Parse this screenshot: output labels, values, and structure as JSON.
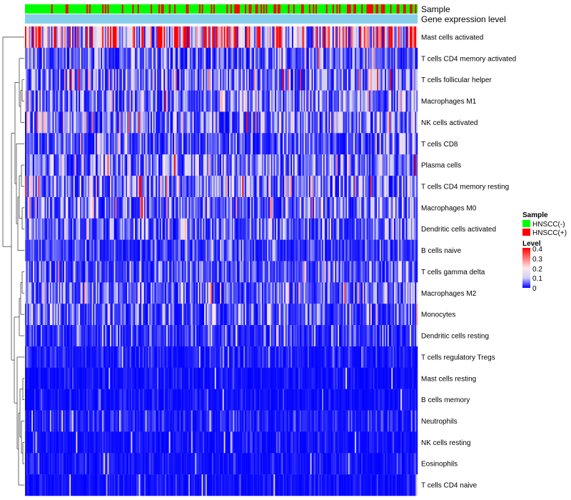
{
  "chart_data": {
    "type": "heatmap",
    "annotation_labels": [
      "Sample",
      "Gene expression level"
    ],
    "row_labels": [
      "Mast cells activated",
      "T cells CD4 memory activated",
      "T cells follicular helper",
      "Macrophages M1",
      "NK cells activated",
      "T cells CD8",
      "Plasma cells",
      "T cells CD4 memory resting",
      "Macrophages M0",
      "Dendritic cells activated",
      "B cells naive",
      "T cells gamma delta",
      "Macrophages M2",
      "Monocytes",
      "Dendritic cells resting",
      "T cells regulatory  Tregs",
      "Mast cells resting",
      "B cells memory",
      "Neutrophils",
      "NK cells resting",
      "Eosinophils",
      "T cells CD4 naive"
    ],
    "row_mean_level": [
      0.3,
      0.06,
      0.09,
      0.07,
      0.08,
      0.05,
      0.08,
      0.09,
      0.08,
      0.06,
      0.04,
      0.05,
      0.07,
      0.05,
      0.03,
      0.02,
      0.01,
      0.01,
      0.02,
      0.01,
      0.01,
      0.01
    ],
    "column_count": 300,
    "hnscc_pos_fraction": 0.3,
    "color_scale": {
      "min": 0,
      "max": 0.4,
      "stops": [
        {
          "value": 0,
          "color": "#0000ff"
        },
        {
          "value": 0.1,
          "color": "#d0d0f4"
        },
        {
          "value": 0.2,
          "color": "#ffe8e8"
        },
        {
          "value": 0.4,
          "color": "#ff0000"
        }
      ]
    },
    "legend_sample": {
      "title": "Sample",
      "items": [
        {
          "label": "HNSCC(-)",
          "color": "#00ff00"
        },
        {
          "label": "HNSCC(+)",
          "color": "#ff0000"
        }
      ]
    },
    "legend_level": {
      "title": "Level",
      "ticks": [
        "0.4",
        "0.3",
        "0.2",
        "0.1",
        "0"
      ]
    },
    "expression_bar_color": "#87ceeb",
    "dendrogram_color": "#444444"
  }
}
